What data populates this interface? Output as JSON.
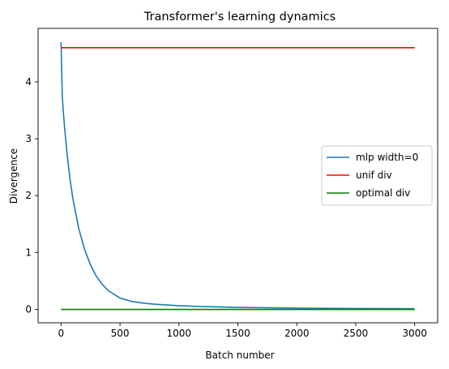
{
  "chart_data": {
    "type": "line",
    "title": "Transformer's learning dynamics",
    "xlabel": "Batch number",
    "ylabel": "Divergence",
    "xlim": [
      -195,
      3195
    ],
    "ylim": [
      -0.235,
      4.94
    ],
    "xticks": [
      0,
      500,
      1000,
      1500,
      2000,
      2500,
      3000
    ],
    "yticks": [
      0,
      1,
      2,
      3,
      4
    ],
    "grid": false,
    "legend_position": "center-right",
    "series": [
      {
        "name": "mlp width=0",
        "color": "#1f77b4",
        "x": [
          0,
          10,
          20,
          30,
          50,
          75,
          100,
          150,
          200,
          250,
          300,
          350,
          400,
          500,
          600,
          700,
          800,
          1000,
          1200,
          1500,
          2000,
          2500,
          3000
        ],
        "y": [
          4.7,
          3.75,
          3.45,
          3.2,
          2.75,
          2.3,
          1.95,
          1.42,
          1.05,
          0.78,
          0.58,
          0.44,
          0.33,
          0.2,
          0.14,
          0.11,
          0.09,
          0.065,
          0.05,
          0.035,
          0.022,
          0.016,
          0.012
        ]
      },
      {
        "name": "unif div",
        "color": "#ff0000",
        "x": [
          0,
          3000
        ],
        "y": [
          4.6,
          4.6
        ]
      },
      {
        "name": "optimal div",
        "color": "#008000",
        "x": [
          0,
          3000
        ],
        "y": [
          0.0,
          0.0
        ]
      }
    ]
  }
}
